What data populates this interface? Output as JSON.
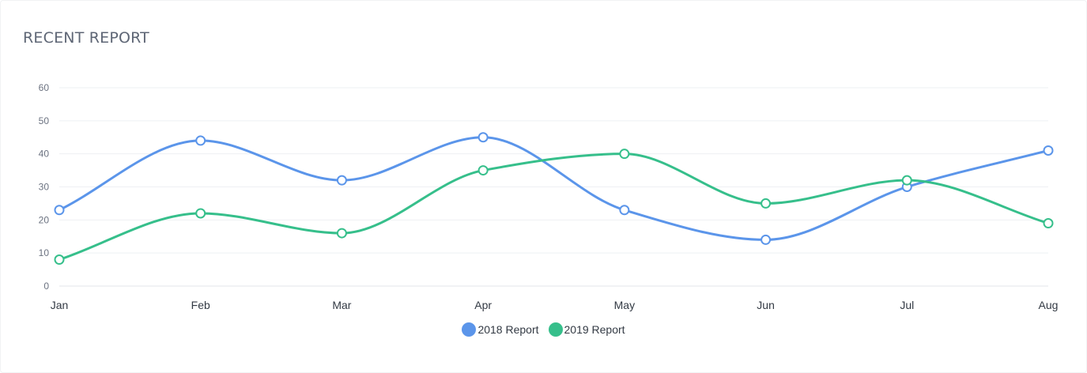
{
  "card": {
    "title": "RECENT REPORT"
  },
  "colors": {
    "series1": "#5b95ea",
    "series2": "#36bf8b"
  },
  "chart_data": {
    "type": "line",
    "title": "RECENT REPORT",
    "categories": [
      "Jan",
      "Feb",
      "Mar",
      "Apr",
      "May",
      "Jun",
      "Jul",
      "Aug"
    ],
    "ylim": [
      0,
      60
    ],
    "yticks": [
      0,
      10,
      20,
      30,
      40,
      50,
      60
    ],
    "grid": true,
    "legend_position": "bottom",
    "series": [
      {
        "name": "2018 Report",
        "values": [
          23,
          44,
          32,
          45,
          23,
          14,
          30,
          41
        ]
      },
      {
        "name": "2019 Report",
        "values": [
          8,
          22,
          16,
          35,
          40,
          25,
          32,
          19
        ]
      }
    ]
  }
}
